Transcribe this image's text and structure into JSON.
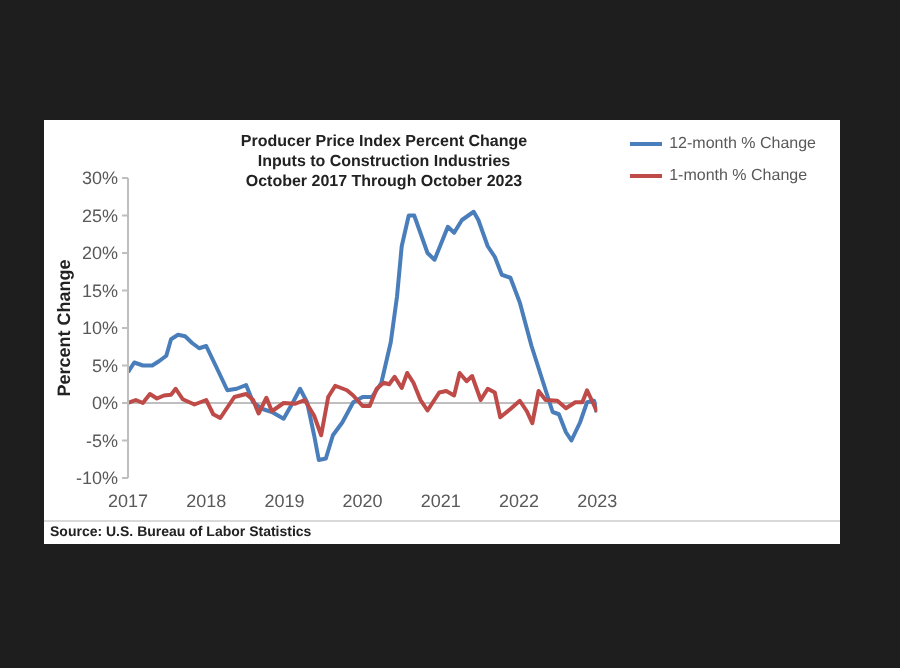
{
  "chart_data": {
    "type": "line",
    "title": "Producer Price Index Percent Change\nInputs to Construction Industries\nOctober 2017 Through October 2023",
    "ylabel": "Percent Change",
    "annotations": [
      "Source: U.S. Bureau of Labor Statistics"
    ],
    "xlim": [
      2017,
      2023
    ],
    "xticks": [
      2017,
      2018,
      2019,
      2020,
      2021,
      2022,
      2023
    ],
    "ylim": [
      -10,
      30
    ],
    "yticks": [
      {
        "value": -10,
        "label": "-10%"
      },
      {
        "value": -5,
        "label": "-5%"
      },
      {
        "value": 0,
        "label": "0%"
      },
      {
        "value": 5,
        "label": "5%"
      },
      {
        "value": 10,
        "label": "10%"
      },
      {
        "value": 15,
        "label": "15%"
      },
      {
        "value": 20,
        "label": "20%"
      },
      {
        "value": 25,
        "label": "25%"
      },
      {
        "value": 30,
        "label": "30%"
      }
    ],
    "ref_lines": [
      {
        "axis": "y",
        "value": 0,
        "color": "#bfbfbf"
      }
    ],
    "grid": false,
    "legend": "top right",
    "marker": "none",
    "line_style": "solid",
    "series": [
      {
        "name": "12-month % Change",
        "color": "#4a7ebb",
        "x": [
          2017.0,
          2017.08,
          2017.19,
          2017.31,
          2017.4,
          2017.49,
          2017.55,
          2017.64,
          2017.73,
          2017.82,
          2017.91,
          2018.0,
          2018.12,
          2018.27,
          2018.39,
          2018.51,
          2018.6,
          2018.72,
          2018.84,
          2018.99,
          2019.11,
          2019.2,
          2019.29,
          2019.38,
          2019.44,
          2019.53,
          2019.62,
          2019.74,
          2019.88,
          2020.0,
          2020.12,
          2020.24,
          2020.36,
          2020.44,
          2020.5,
          2020.59,
          2020.66,
          2020.83,
          2020.92,
          2021.09,
          2021.17,
          2021.27,
          2021.42,
          2021.48,
          2021.6,
          2021.69,
          2021.78,
          2021.89,
          2022.01,
          2022.16,
          2022.31,
          2022.43,
          2022.51,
          2022.6,
          2022.67,
          2022.78,
          2022.87,
          2022.96,
          2022.99
        ],
        "values": [
          4.1,
          5.4,
          5.0,
          5.0,
          5.6,
          6.3,
          8.5,
          9.1,
          8.9,
          8.0,
          7.3,
          7.6,
          5.0,
          1.7,
          1.9,
          2.4,
          0.1,
          -0.8,
          -1.2,
          -2.1,
          0.1,
          1.9,
          0.1,
          -4.3,
          -7.6,
          -7.4,
          -4.3,
          -2.6,
          0.1,
          0.8,
          0.8,
          2.7,
          8.1,
          14.2,
          20.9,
          25.0,
          25.0,
          20.0,
          19.1,
          23.5,
          22.7,
          24.4,
          25.5,
          24.4,
          20.9,
          19.5,
          17.1,
          16.7,
          13.4,
          7.6,
          2.7,
          -1.2,
          -1.5,
          -3.9,
          -5.0,
          -2.6,
          0.1,
          0.3,
          -1.2
        ]
      },
      {
        "name": "1-month % Change",
        "color": "#be4b48",
        "x": [
          2017.0,
          2017.1,
          2017.19,
          2017.28,
          2017.37,
          2017.46,
          2017.55,
          2017.61,
          2017.7,
          2017.85,
          2018.0,
          2018.09,
          2018.18,
          2018.36,
          2018.51,
          2018.6,
          2018.67,
          2018.77,
          2018.84,
          2018.99,
          2019.14,
          2019.26,
          2019.38,
          2019.47,
          2019.56,
          2019.65,
          2019.8,
          2019.88,
          2020.0,
          2020.09,
          2020.18,
          2020.27,
          2020.34,
          2020.41,
          2020.5,
          2020.57,
          2020.65,
          2020.74,
          2020.83,
          2020.98,
          2021.07,
          2021.17,
          2021.24,
          2021.33,
          2021.4,
          2021.51,
          2021.6,
          2021.69,
          2021.76,
          2021.89,
          2022.01,
          2022.1,
          2022.17,
          2022.25,
          2022.34,
          2022.49,
          2022.6,
          2022.72,
          2022.81,
          2022.87,
          2023.0
        ],
        "values": [
          0,
          0.4,
          0,
          1.2,
          0.6,
          1.0,
          1.1,
          1.9,
          0.5,
          -0.2,
          0.4,
          -1.5,
          -2.0,
          0.8,
          1.2,
          0.4,
          -1.4,
          0.7,
          -1.1,
          0,
          -0.1,
          0.4,
          -1.7,
          -4.3,
          0.8,
          2.3,
          1.7,
          1.0,
          -0.4,
          -0.4,
          1.9,
          2.7,
          2.5,
          3.5,
          2.0,
          4.0,
          2.7,
          0.4,
          -1.0,
          1.4,
          1.6,
          1.0,
          4.0,
          2.9,
          3.6,
          0.4,
          1.9,
          1.4,
          -1.9,
          -0.8,
          0.3,
          -1.1,
          -2.7,
          1.6,
          0.4,
          0.3,
          -0.7,
          0.1,
          0.1,
          1.7,
          -1.2
        ]
      }
    ]
  }
}
